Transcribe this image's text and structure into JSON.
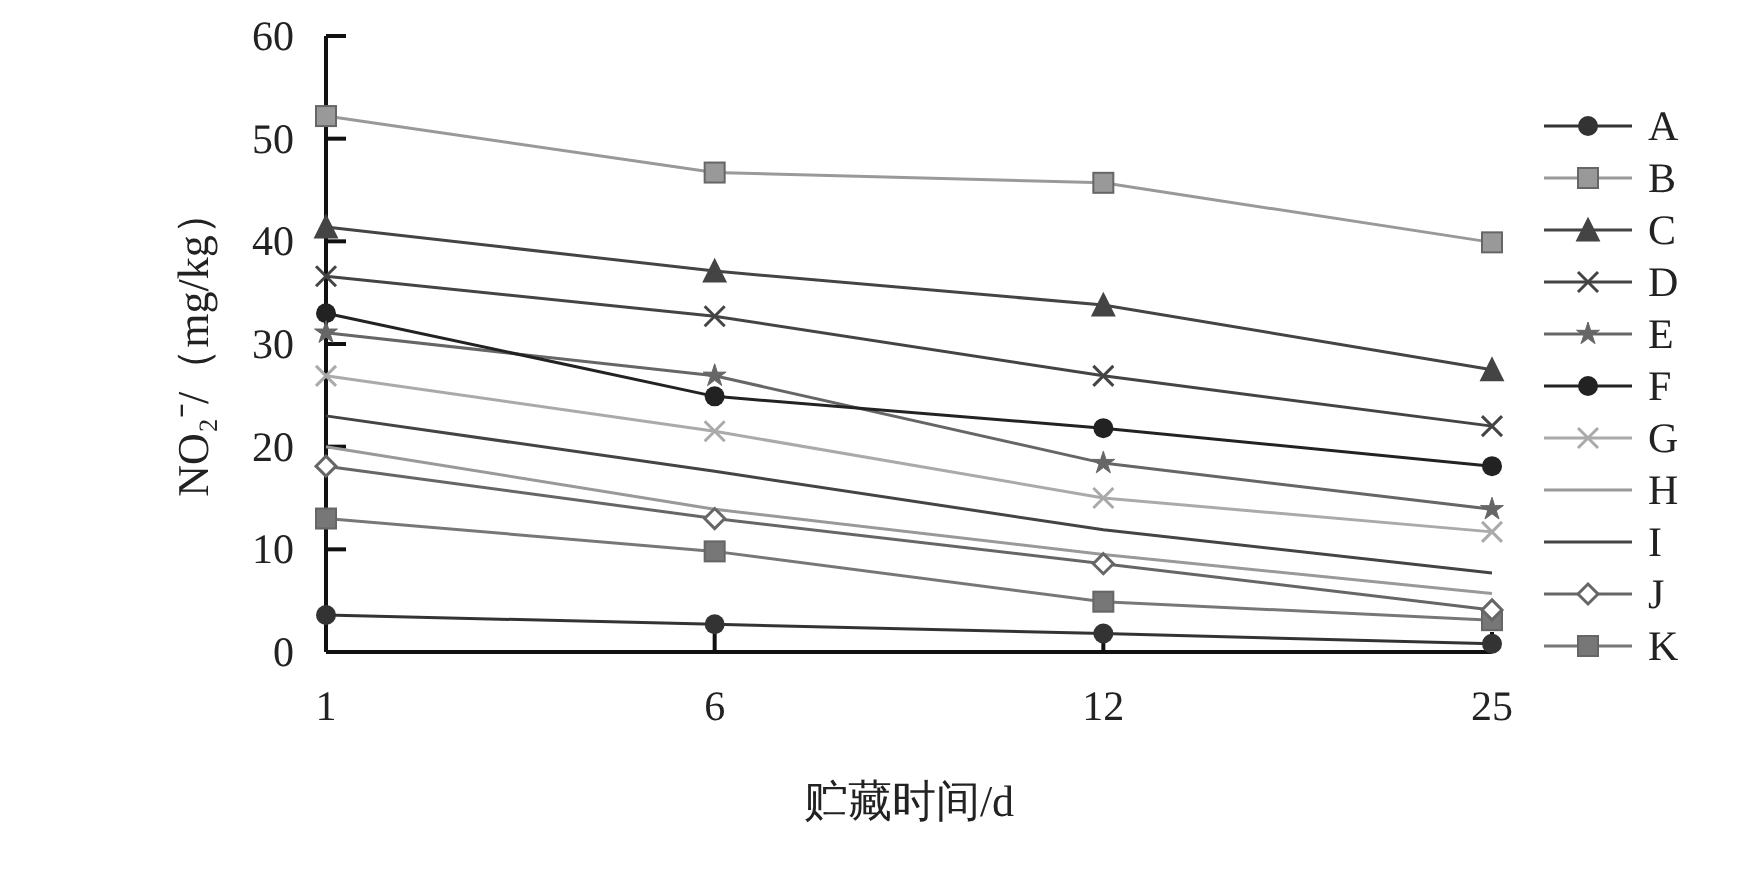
{
  "chart_data": {
    "type": "line",
    "xlabel": "贮藏时间/d",
    "ylabel": "NO₂⁻/（mg/kg）",
    "categories": [
      "1",
      "6",
      "12",
      "25"
    ],
    "ylim": [
      0,
      60
    ],
    "yticks": [
      0,
      10,
      20,
      30,
      40,
      50,
      60
    ],
    "legend": "right",
    "series": [
      {
        "name": "A",
        "color": "#333333",
        "marker": "circle",
        "values": [
          3.6,
          2.7,
          1.8,
          0.8
        ]
      },
      {
        "name": "B",
        "color": "#999999",
        "marker": "square",
        "values": [
          52.2,
          46.7,
          45.7,
          39.9
        ]
      },
      {
        "name": "C",
        "color": "#444444",
        "marker": "triangle",
        "values": [
          41.4,
          37.1,
          33.8,
          27.5
        ]
      },
      {
        "name": "D",
        "color": "#444444",
        "marker": "cross",
        "values": [
          36.6,
          32.7,
          26.9,
          22.0
        ]
      },
      {
        "name": "E",
        "color": "#666666",
        "marker": "star",
        "values": [
          31.1,
          26.9,
          18.4,
          13.9
        ]
      },
      {
        "name": "F",
        "color": "#222222",
        "marker": "circle",
        "values": [
          33.0,
          24.9,
          21.8,
          18.1
        ]
      },
      {
        "name": "G",
        "color": "#aaaaaa",
        "marker": "cross",
        "values": [
          26.9,
          21.5,
          15.0,
          11.7
        ]
      },
      {
        "name": "H",
        "color": "#999999",
        "marker": "none",
        "values": [
          20.0,
          13.9,
          9.5,
          5.7
        ]
      },
      {
        "name": "I",
        "color": "#444444",
        "marker": "none",
        "values": [
          23.0,
          17.6,
          11.9,
          7.7
        ]
      },
      {
        "name": "J",
        "color": "#666666",
        "marker": "diamond",
        "values": [
          18.1,
          13.0,
          8.6,
          4.1
        ]
      },
      {
        "name": "K",
        "color": "#777777",
        "marker": "square",
        "values": [
          13.0,
          9.8,
          4.9,
          3.1
        ]
      }
    ]
  }
}
